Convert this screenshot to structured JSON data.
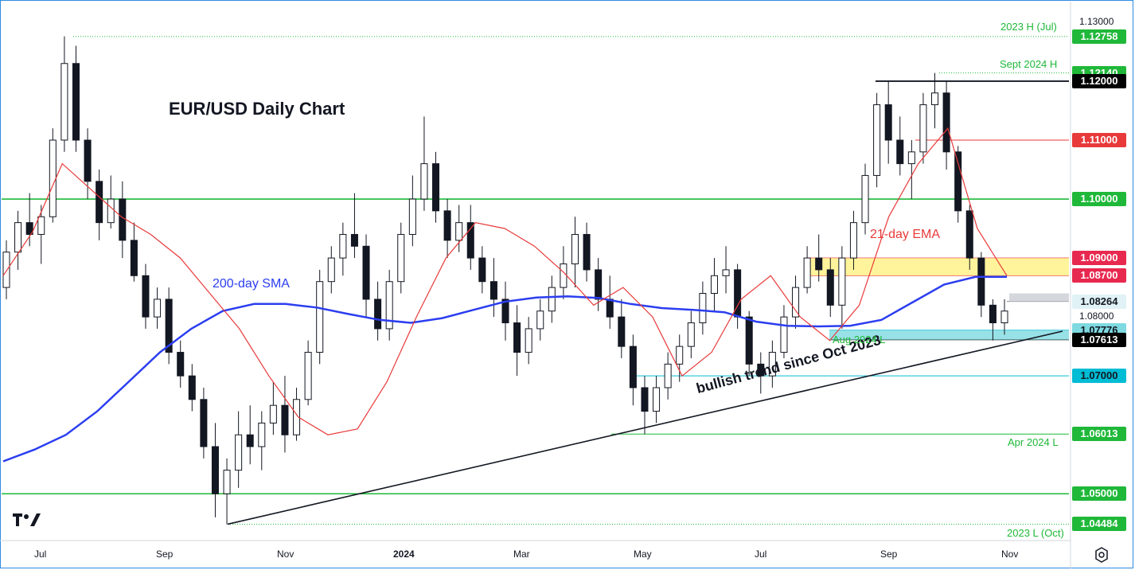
{
  "chart_data": {
    "type": "candlestick",
    "title": "EUR/USD Daily Chart",
    "y_axis": {
      "range": [
        1.0422,
        1.1335
      ],
      "ticks": [
        "1.13000",
        "1.08000"
      ]
    },
    "x_axis": {
      "ticks": [
        "Jul",
        "Sep",
        "Nov",
        "2024",
        "Mar",
        "May",
        "Jul",
        "Sep",
        "Nov"
      ]
    },
    "levels": [
      {
        "label": "1.12758",
        "value": 1.12758,
        "color": "#1fb839",
        "text_color": "#ffffff",
        "annotation": "2023 H (Jul)",
        "style": "dotted"
      },
      {
        "label": "1.12140",
        "value": 1.1214,
        "color": "#1fb839",
        "text_color": "#ffffff",
        "annotation": "Sept 2024 H",
        "style": "dotted"
      },
      {
        "label": "1.12000",
        "value": 1.12,
        "color": "#000000",
        "text_color": "#ffffff",
        "annotation": "",
        "style": "solid"
      },
      {
        "label": "1.11000",
        "value": 1.11,
        "color": "#e83a3a",
        "text_color": "#ffffff",
        "annotation": "",
        "style": "solid"
      },
      {
        "label": "1.10000",
        "value": 1.1,
        "color": "#1fb839",
        "text_color": "#ffffff",
        "annotation": "",
        "style": "solid"
      },
      {
        "label": "1.09000",
        "value": 1.09,
        "color": "#e8294f",
        "text_color": "#ffffff",
        "annotation": "",
        "style": "solid"
      },
      {
        "label": "1.08700",
        "value": 1.087,
        "color": "#e8294f",
        "text_color": "#ffffff",
        "annotation": "",
        "style": "solid"
      },
      {
        "label": "1.08264",
        "value": 1.08264,
        "color": "#e0f2f6",
        "text_color": "#131722",
        "annotation": "",
        "style": "solid"
      },
      {
        "label": "1.07776",
        "value": 1.07776,
        "color": "#7ed9e0",
        "text_color": "#131722",
        "annotation": "",
        "style": "solid"
      },
      {
        "label": "1.07613",
        "value": 1.07613,
        "color": "#000000",
        "text_color": "#ffffff",
        "annotation": "Aug 2024 L",
        "style": "solid"
      },
      {
        "label": "1.07000",
        "value": 1.07,
        "color": "#00bcd4",
        "text_color": "#131722",
        "annotation": "",
        "style": "solid"
      },
      {
        "label": "1.06013",
        "value": 1.06013,
        "color": "#1fb839",
        "text_color": "#ffffff",
        "annotation": "Apr 2024 L",
        "style": "solid"
      },
      {
        "label": "1.05000",
        "value": 1.05,
        "color": "#1fb839",
        "text_color": "#ffffff",
        "annotation": "",
        "style": "solid"
      },
      {
        "label": "1.04484",
        "value": 1.04484,
        "color": "#1fb839",
        "text_color": "#ffffff",
        "annotation": "2023 L (Oct)",
        "style": "dotted"
      }
    ],
    "annotations": {
      "sma": "200-day SMA",
      "ema": "21-day EMA",
      "trend": "bullish trend since Oct 2023"
    },
    "sma200": [
      1.0555,
      1.0575,
      1.06,
      1.064,
      1.069,
      1.074,
      1.078,
      1.081,
      1.0822,
      1.0822,
      1.0816,
      1.0805,
      1.0795,
      1.079,
      1.0798,
      1.0812,
      1.0826,
      1.0833,
      1.0835,
      1.0832,
      1.0822,
      1.0815,
      1.0812,
      1.0808,
      1.0792,
      1.0785,
      1.0784,
      1.0785,
      1.0795,
      1.0825,
      1.0855,
      1.0868,
      1.0868
    ],
    "ema21": [
      1.087,
      1.0945,
      1.106,
      1.1015,
      1.097,
      1.094,
      1.09,
      1.084,
      1.078,
      1.07,
      1.063,
      1.06,
      1.061,
      1.069,
      1.08,
      1.09,
      1.096,
      1.095,
      1.092,
      1.0875,
      1.082,
      1.085,
      1.08,
      1.07,
      1.074,
      1.083,
      1.087,
      1.08,
      1.076,
      1.082,
      1.097,
      1.106,
      1.112,
      1.095,
      1.087
    ],
    "ohlc": [
      [
        1.085,
        1.093,
        1.083,
        1.091
      ],
      [
        1.091,
        1.098,
        1.088,
        1.096
      ],
      [
        1.096,
        1.101,
        1.092,
        1.094
      ],
      [
        1.094,
        1.099,
        1.089,
        1.097
      ],
      [
        1.097,
        1.112,
        1.096,
        1.11
      ],
      [
        1.11,
        1.1276,
        1.108,
        1.123
      ],
      [
        1.123,
        1.126,
        1.108,
        1.11
      ],
      [
        1.11,
        1.112,
        1.1,
        1.103
      ],
      [
        1.103,
        1.105,
        1.093,
        1.096
      ],
      [
        1.096,
        1.104,
        1.095,
        1.1
      ],
      [
        1.1,
        1.103,
        1.09,
        1.093
      ],
      [
        1.093,
        1.096,
        1.086,
        1.087
      ],
      [
        1.087,
        1.089,
        1.078,
        1.08
      ],
      [
        1.08,
        1.085,
        1.078,
        1.083
      ],
      [
        1.083,
        1.085,
        1.072,
        1.074
      ],
      [
        1.074,
        1.076,
        1.068,
        1.07
      ],
      [
        1.07,
        1.072,
        1.064,
        1.066
      ],
      [
        1.066,
        1.068,
        1.056,
        1.058
      ],
      [
        1.058,
        1.062,
        1.046,
        1.05
      ],
      [
        1.05,
        1.056,
        1.0448,
        1.054
      ],
      [
        1.054,
        1.064,
        1.051,
        1.06
      ],
      [
        1.06,
        1.065,
        1.055,
        1.058
      ],
      [
        1.058,
        1.064,
        1.054,
        1.062
      ],
      [
        1.062,
        1.069,
        1.06,
        1.065
      ],
      [
        1.065,
        1.07,
        1.057,
        1.06
      ],
      [
        1.06,
        1.068,
        1.059,
        1.066
      ],
      [
        1.066,
        1.076,
        1.065,
        1.074
      ],
      [
        1.074,
        1.088,
        1.072,
        1.086
      ],
      [
        1.086,
        1.092,
        1.084,
        1.09
      ],
      [
        1.09,
        1.096,
        1.087,
        1.094
      ],
      [
        1.094,
        1.101,
        1.09,
        1.092
      ],
      [
        1.092,
        1.094,
        1.08,
        1.083
      ],
      [
        1.083,
        1.086,
        1.076,
        1.078
      ],
      [
        1.078,
        1.088,
        1.076,
        1.086
      ],
      [
        1.086,
        1.096,
        1.084,
        1.094
      ],
      [
        1.094,
        1.104,
        1.092,
        1.1
      ],
      [
        1.1,
        1.114,
        1.098,
        1.106
      ],
      [
        1.106,
        1.108,
        1.096,
        1.098
      ],
      [
        1.098,
        1.1,
        1.09,
        1.093
      ],
      [
        1.093,
        1.099,
        1.091,
        1.096
      ],
      [
        1.096,
        1.099,
        1.088,
        1.09
      ],
      [
        1.09,
        1.092,
        1.084,
        1.086
      ],
      [
        1.086,
        1.09,
        1.08,
        1.083
      ],
      [
        1.083,
        1.086,
        1.076,
        1.079
      ],
      [
        1.079,
        1.082,
        1.07,
        1.074
      ],
      [
        1.074,
        1.08,
        1.072,
        1.078
      ],
      [
        1.078,
        1.083,
        1.076,
        1.081
      ],
      [
        1.081,
        1.087,
        1.079,
        1.085
      ],
      [
        1.085,
        1.092,
        1.083,
        1.089
      ],
      [
        1.089,
        1.097,
        1.085,
        1.094
      ],
      [
        1.094,
        1.096,
        1.086,
        1.088
      ],
      [
        1.088,
        1.09,
        1.081,
        1.083
      ],
      [
        1.083,
        1.087,
        1.078,
        1.08
      ],
      [
        1.08,
        1.083,
        1.073,
        1.075
      ],
      [
        1.075,
        1.077,
        1.065,
        1.068
      ],
      [
        1.068,
        1.07,
        1.0601,
        1.064
      ],
      [
        1.064,
        1.07,
        1.062,
        1.068
      ],
      [
        1.068,
        1.074,
        1.066,
        1.072
      ],
      [
        1.072,
        1.077,
        1.069,
        1.075
      ],
      [
        1.075,
        1.081,
        1.073,
        1.079
      ],
      [
        1.079,
        1.086,
        1.077,
        1.084
      ],
      [
        1.084,
        1.09,
        1.081,
        1.087
      ],
      [
        1.087,
        1.092,
        1.084,
        1.088
      ],
      [
        1.088,
        1.089,
        1.078,
        1.08
      ],
      [
        1.08,
        1.081,
        1.07,
        1.072
      ],
      [
        1.072,
        1.074,
        1.067,
        1.07
      ],
      [
        1.07,
        1.076,
        1.068,
        1.074
      ],
      [
        1.074,
        1.082,
        1.073,
        1.08
      ],
      [
        1.08,
        1.087,
        1.078,
        1.085
      ],
      [
        1.085,
        1.092,
        1.084,
        1.09
      ],
      [
        1.09,
        1.094,
        1.086,
        1.088
      ],
      [
        1.088,
        1.09,
        1.08,
        1.082
      ],
      [
        1.082,
        1.092,
        1.078,
        1.09
      ],
      [
        1.09,
        1.098,
        1.088,
        1.096
      ],
      [
        1.096,
        1.106,
        1.094,
        1.104
      ],
      [
        1.104,
        1.118,
        1.102,
        1.116
      ],
      [
        1.116,
        1.12,
        1.106,
        1.11
      ],
      [
        1.11,
        1.114,
        1.104,
        1.106
      ],
      [
        1.106,
        1.11,
        1.1,
        1.108
      ],
      [
        1.108,
        1.118,
        1.106,
        1.116
      ],
      [
        1.116,
        1.1214,
        1.112,
        1.118
      ],
      [
        1.118,
        1.12,
        1.105,
        1.108
      ],
      [
        1.108,
        1.109,
        1.096,
        1.098
      ],
      [
        1.098,
        1.099,
        1.088,
        1.09
      ],
      [
        1.09,
        1.091,
        1.08,
        1.082
      ],
      [
        1.082,
        1.083,
        1.076,
        1.079
      ],
      [
        1.079,
        1.083,
        1.077,
        1.081
      ]
    ]
  }
}
